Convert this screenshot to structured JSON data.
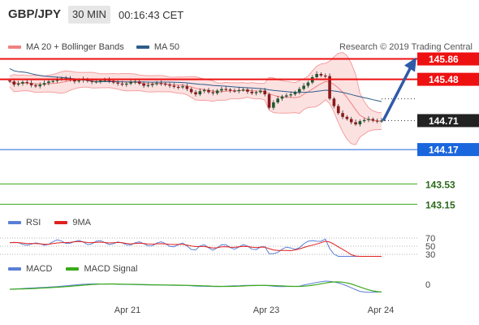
{
  "header": {
    "symbol": "GBP/JPY",
    "timeframe": "30 MIN",
    "time": "00:16:43 CET"
  },
  "legend": {
    "main": [
      {
        "label": "MA 20 + Bollinger Bands",
        "color": "#f08080"
      },
      {
        "label": "MA 50",
        "color": "#2e5c8a"
      }
    ],
    "rsi": [
      {
        "label": "RSI",
        "color": "#5b7fd6"
      },
      {
        "label": "9MA",
        "color": "#e02020"
      }
    ],
    "macd": [
      {
        "label": "MACD",
        "color": "#5b7fd6"
      },
      {
        "label": "MACD Signal",
        "color": "#3aaa1a"
      }
    ]
  },
  "credit": "Research © 2019 Trading Central",
  "chart_data": [
    {
      "type": "line",
      "panel": "price",
      "price_levels": [
        {
          "value": 145.86,
          "label": "145.86",
          "style": "resistance",
          "color": "#ee1111"
        },
        {
          "value": 145.48,
          "label": "145.48",
          "style": "resistance",
          "color": "#ee1111"
        },
        {
          "value": 144.71,
          "label": "144.71",
          "style": "last-price",
          "color": "#222222"
        },
        {
          "value": 144.17,
          "label": "144.17",
          "style": "support",
          "color": "#1a66dd"
        },
        {
          "value": 143.53,
          "label": "143.53",
          "style": "support",
          "color": "#3aaa1a"
        },
        {
          "value": 143.15,
          "label": "143.15",
          "style": "support",
          "color": "#3aaa1a"
        }
      ],
      "x_tick_labels": [
        "Apr 21",
        "Apr 23",
        "Apr 24"
      ],
      "close_series": [
        145.44,
        145.38,
        145.4,
        145.43,
        145.41,
        145.37,
        145.35,
        145.38,
        145.41,
        145.44,
        145.45,
        145.48,
        145.5,
        145.49,
        145.47,
        145.44,
        145.46,
        145.48,
        145.45,
        145.43,
        145.44,
        145.46,
        145.47,
        145.45,
        145.42,
        145.4,
        145.38,
        145.4,
        145.43,
        145.44,
        145.4,
        145.36,
        145.37,
        145.39,
        145.41,
        145.4,
        145.38,
        145.36,
        145.34,
        145.33,
        145.35,
        145.3,
        145.24,
        145.2,
        145.26,
        145.28,
        145.24,
        145.22,
        145.27,
        145.3,
        145.29,
        145.27,
        145.26,
        145.28,
        145.29,
        145.25,
        145.22,
        145.24,
        145.27,
        145.2,
        144.95,
        145.05,
        145.12,
        145.16,
        145.18,
        145.2,
        145.24,
        145.3,
        145.36,
        145.42,
        145.52,
        145.58,
        145.55,
        145.54,
        145.12,
        144.98,
        144.85,
        144.78,
        144.74,
        144.68,
        144.64,
        144.7,
        144.72,
        144.74,
        144.71,
        144.7,
        144.71
      ],
      "y_range": [
        143.05,
        146.05
      ],
      "grid": false,
      "projection_target": 145.86
    },
    {
      "type": "line",
      "panel": "rsi",
      "y_tick_labels": [
        "70",
        "50",
        "30"
      ],
      "y_range": [
        0,
        100
      ]
    },
    {
      "type": "line",
      "panel": "macd",
      "y_tick_labels": [
        "0"
      ]
    }
  ]
}
